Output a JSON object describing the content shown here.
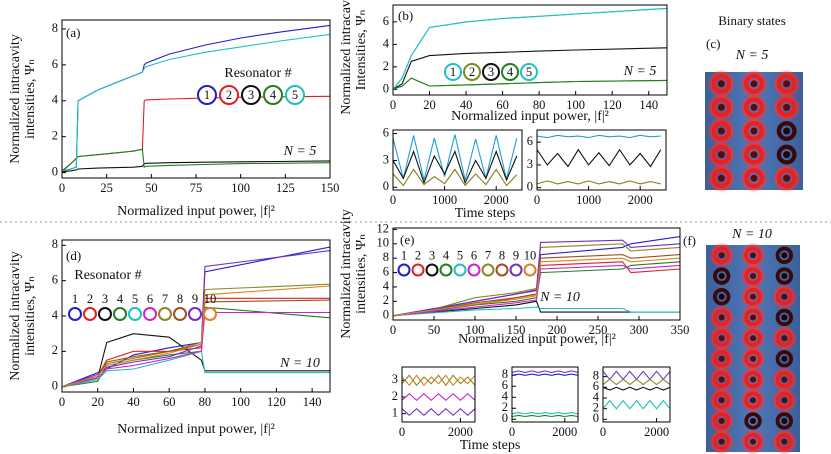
{
  "chart_data": [
    {
      "type": "line",
      "label": "(a)",
      "xlabel": "Normalized input power, |f|²",
      "ylabel": [
        "Normalized intracavity",
        "intensities, Ψₙ"
      ],
      "annotations": [
        "N = 5"
      ],
      "resonator_title": "Resonator #",
      "xlim": [
        0,
        150
      ],
      "ylim": [
        -0.3,
        8.5
      ],
      "xticks": [
        0,
        25,
        50,
        75,
        100,
        125,
        150
      ],
      "yticks": [
        0,
        2,
        4,
        6,
        8
      ],
      "x": [
        0,
        5,
        8,
        9,
        20,
        40,
        45,
        46,
        47,
        60,
        80,
        100,
        120,
        150
      ],
      "series": [
        {
          "name": "1",
          "color": "#1f1fd0",
          "values": [
            0.1,
            0.2,
            0.3,
            4.0,
            4.6,
            5.4,
            5.6,
            6.0,
            6.1,
            6.6,
            7.1,
            7.5,
            7.8,
            8.2
          ]
        },
        {
          "name": "2",
          "color": "#e02020",
          "values": [
            0.1,
            0.5,
            0.8,
            0.9,
            1.0,
            1.2,
            1.3,
            4.0,
            4.05,
            4.1,
            4.15,
            4.2,
            4.22,
            4.25
          ]
        },
        {
          "name": "3",
          "color": "#111111",
          "values": [
            0.05,
            0.1,
            0.15,
            0.2,
            0.25,
            0.3,
            0.35,
            0.5,
            0.52,
            0.55,
            0.58,
            0.6,
            0.62,
            0.65
          ]
        },
        {
          "name": "4",
          "color": "#208020",
          "values": [
            0.05,
            0.5,
            0.8,
            0.9,
            1.0,
            1.2,
            1.3,
            0.3,
            0.35,
            0.4,
            0.45,
            0.5,
            0.52,
            0.55
          ]
        },
        {
          "name": "5",
          "color": "#1fc0c0",
          "values": [
            0.1,
            0.2,
            0.3,
            4.0,
            4.6,
            5.4,
            5.6,
            5.8,
            5.9,
            6.3,
            6.7,
            7.0,
            7.3,
            7.7
          ]
        }
      ]
    },
    {
      "type": "line",
      "label": "(b)",
      "xlabel": "Normalized input power, |f|²",
      "ylabel": [
        "Normalized intracavity",
        "Intensities, Ψₙ"
      ],
      "annotations": [
        "N = 5"
      ],
      "xlim": [
        0,
        150
      ],
      "ylim": [
        -0.5,
        7.5
      ],
      "xticks": [
        0,
        20,
        40,
        60,
        80,
        100,
        120,
        140
      ],
      "yticks": [
        0,
        2,
        4,
        6
      ],
      "x": [
        0,
        5,
        10,
        20,
        40,
        60,
        80,
        100,
        150
      ],
      "series": [
        {
          "name": "1",
          "color": "#1fc0c0",
          "values": [
            0,
            1,
            3,
            5.5,
            6,
            6.3,
            6.5,
            6.7,
            7.2
          ]
        },
        {
          "name": "2",
          "color": "#7a8a20",
          "values": [
            0,
            0.3,
            1,
            0.3,
            0.4,
            0.5,
            0.6,
            0.7,
            0.8
          ]
        },
        {
          "name": "3",
          "color": "#111111",
          "values": [
            0,
            0.5,
            2.5,
            3,
            3.2,
            3.3,
            3.4,
            3.5,
            3.7
          ]
        },
        {
          "name": "4",
          "color": "#208020",
          "values": [
            0,
            0.3,
            1,
            0.3,
            0.4,
            0.5,
            0.6,
            0.7,
            0.8
          ]
        },
        {
          "name": "5",
          "color": "#1fc0c0",
          "values": [
            0,
            1,
            3,
            5.5,
            6,
            6.3,
            6.5,
            6.7,
            7.2
          ]
        }
      ]
    },
    {
      "type": "line",
      "xlabel": "Time steps",
      "xlim": [
        0,
        2500
      ],
      "ylim": [
        -0.3,
        6.4
      ],
      "xticks": [
        0,
        1000,
        2000
      ],
      "yticks": [
        0,
        3,
        6
      ],
      "x": [
        0,
        200,
        400,
        600,
        800,
        1000,
        1200,
        1400,
        1600,
        1800,
        2000,
        2200,
        2400
      ],
      "series": [
        {
          "color": "#1fa0d0",
          "values": [
            5.5,
            1,
            5.8,
            0.8,
            5.5,
            1.2,
            5.9,
            0.8,
            5.4,
            1,
            5.8,
            0.9,
            5.5
          ]
        },
        {
          "color": "#111111",
          "values": [
            3,
            1,
            4,
            0.5,
            3.5,
            1.5,
            4,
            0.5,
            3,
            1,
            4,
            0.8,
            3.5
          ]
        },
        {
          "color": "#8a7a20",
          "values": [
            1.5,
            0.2,
            2,
            0.3,
            1.2,
            0.4,
            2,
            0.2,
            1.5,
            0.3,
            2,
            0.2,
            1.4
          ]
        }
      ]
    },
    {
      "type": "line",
      "xlim": [
        0,
        2500
      ],
      "ylim": [
        -0.3,
        7.6
      ],
      "xticks": [
        0,
        1000,
        2000
      ],
      "yticks": [
        0,
        3,
        6
      ],
      "x": [
        0,
        200,
        400,
        600,
        800,
        1000,
        1200,
        1400,
        1600,
        1800,
        2000,
        2200,
        2400
      ],
      "series": [
        {
          "color": "#1fa0d0",
          "values": [
            6.8,
            6.6,
            6.9,
            6.7,
            6.8,
            6.6,
            6.9,
            6.7,
            6.8,
            6.6,
            6.9,
            6.7,
            6.8
          ]
        },
        {
          "color": "#111111",
          "values": [
            5,
            3,
            4.5,
            2.8,
            5,
            3,
            4.6,
            2.9,
            5,
            3,
            4.5,
            2.8,
            5
          ]
        },
        {
          "color": "#8a7a20",
          "values": [
            0.5,
            0.9,
            0.5,
            0.8,
            0.5,
            0.9,
            0.5,
            0.8,
            0.5,
            0.9,
            0.5,
            0.8,
            0.5
          ]
        }
      ]
    },
    {
      "type": "image",
      "label": "(c)",
      "title": "Binary states",
      "annotations": [
        "N = 5"
      ],
      "states": [
        [
          1,
          1,
          1,
          1,
          1
        ],
        [
          1,
          1,
          1,
          1,
          1
        ],
        [
          1,
          1,
          0,
          0,
          1
        ]
      ]
    },
    {
      "type": "line",
      "label": "(d)",
      "xlabel": "Normalized input power, |f|²",
      "ylabel": [
        "Normalized intracavity",
        "intensities, Ψₙ"
      ],
      "annotations": [
        "N = 10"
      ],
      "resonator_title": "Resonator #",
      "xlim": [
        0,
        150
      ],
      "ylim": [
        -0.3,
        8.3
      ],
      "xticks": [
        0,
        20,
        40,
        60,
        80,
        100,
        120,
        140
      ],
      "yticks": [
        0,
        2,
        4,
        6,
        8
      ],
      "x": [
        0,
        20,
        25,
        40,
        60,
        78,
        80,
        150
      ],
      "series": [
        {
          "name": "1",
          "color": "#1f1fd0",
          "values": [
            0,
            0.8,
            1.0,
            1.8,
            2.2,
            2.5,
            6.5,
            7.9
          ]
        },
        {
          "name": "2",
          "color": "#e02020",
          "values": [
            0,
            0.6,
            1.5,
            2.0,
            2.0,
            2.2,
            5.0,
            5.0
          ]
        },
        {
          "name": "3",
          "color": "#111111",
          "values": [
            0,
            0.5,
            2.5,
            3.0,
            2.8,
            1.5,
            0.9,
            0.9
          ]
        },
        {
          "name": "4",
          "color": "#208020",
          "values": [
            0,
            0.3,
            1.2,
            1.5,
            1.8,
            2.0,
            4.5,
            3.9
          ]
        },
        {
          "name": "5",
          "color": "#1fc0c0",
          "values": [
            0,
            0.4,
            0.9,
            1.0,
            1.5,
            2.0,
            0.8,
            0.8
          ]
        },
        {
          "name": "6",
          "color": "#d020d0",
          "values": [
            0,
            0.5,
            1.0,
            1.2,
            1.6,
            2.0,
            4.2,
            4.2
          ]
        },
        {
          "name": "7",
          "color": "#8a8a20",
          "values": [
            0,
            0.6,
            1.3,
            1.6,
            2.0,
            2.5,
            5.5,
            5.8
          ]
        },
        {
          "name": "8",
          "color": "#a05020",
          "values": [
            0,
            0.6,
            1.4,
            1.7,
            2.0,
            2.4,
            4.8,
            4.9
          ]
        },
        {
          "name": "9",
          "color": "#7030c0",
          "values": [
            0,
            0.7,
            1.1,
            1.4,
            1.7,
            2.3,
            6.8,
            7.7
          ]
        },
        {
          "name": "10",
          "color": "#e08020",
          "values": [
            0,
            0.6,
            1.2,
            1.5,
            1.9,
            2.4,
            5.2,
            5.7
          ]
        }
      ]
    },
    {
      "type": "line",
      "label": "(e)",
      "xlabel": "Normalized input power, |f|²",
      "ylabel": [
        "Normalized intracavity",
        "intensities, Ψₙ"
      ],
      "annotations": [
        "N = 10"
      ],
      "xlim": [
        0,
        350
      ],
      "ylim": [
        -0.6,
        12.2
      ],
      "xticks": [
        0,
        50,
        100,
        150,
        200,
        250,
        300,
        350
      ],
      "yticks": [
        0,
        2,
        4,
        6,
        8,
        10,
        12
      ],
      "x": [
        0,
        50,
        100,
        150,
        175,
        180,
        280,
        290,
        350
      ],
      "series": [
        {
          "name": "1",
          "color": "#1f1fd0",
          "values": [
            0,
            1.0,
            2.0,
            3.0,
            3.5,
            8.5,
            9.5,
            10,
            11
          ]
        },
        {
          "name": "2",
          "color": "#e02020",
          "values": [
            0,
            0.8,
            1.5,
            2.5,
            3,
            7,
            7.5,
            6,
            6.5
          ]
        },
        {
          "name": "3",
          "color": "#111111",
          "values": [
            0,
            0.5,
            1,
            1.5,
            2,
            0.5,
            0.5,
            0.5,
            0.5
          ]
        },
        {
          "name": "4",
          "color": "#208020",
          "values": [
            0,
            0.7,
            1.5,
            2,
            2.5,
            6,
            6.5,
            7,
            7.5
          ]
        },
        {
          "name": "5",
          "color": "#1fc0c0",
          "values": [
            0,
            0.4,
            0.8,
            1,
            1.2,
            1,
            1,
            0.5,
            0.5
          ]
        },
        {
          "name": "6",
          "color": "#d020d0",
          "values": [
            0,
            0.6,
            1.2,
            1.8,
            2.2,
            6.5,
            7,
            6.5,
            7
          ]
        },
        {
          "name": "7",
          "color": "#8a8a20",
          "values": [
            0,
            0.9,
            2.5,
            3.2,
            3.8,
            9.5,
            10,
            9,
            9.5
          ]
        },
        {
          "name": "8",
          "color": "#a05020",
          "values": [
            0,
            0.8,
            1.8,
            2.5,
            3,
            8,
            8.5,
            8,
            8.5
          ]
        },
        {
          "name": "9",
          "color": "#7030c0",
          "values": [
            0,
            0.9,
            2.0,
            3.0,
            3.6,
            10.2,
            10.5,
            9.5,
            10
          ]
        },
        {
          "name": "10",
          "color": "#e08020",
          "values": [
            0,
            0.8,
            1.6,
            2.3,
            2.8,
            7.5,
            8,
            7.5,
            8
          ]
        }
      ]
    },
    {
      "type": "line",
      "xlabel": "Time steps",
      "xlim": [
        0,
        2500
      ],
      "ylim": [
        0.5,
        3.8
      ],
      "xticks": [
        0,
        2000
      ],
      "yticks": [
        1,
        2,
        3
      ],
      "x": [
        0,
        250,
        500,
        750,
        1000,
        1250,
        1500,
        1750,
        2000,
        2250,
        2500
      ],
      "series": [
        {
          "color": "#e08020",
          "values": [
            3.2,
            2.7,
            3.3,
            2.7,
            3.2,
            2.8,
            3.3,
            2.7,
            3.2,
            2.8,
            3.3
          ]
        },
        {
          "color": "#8a8a20",
          "values": [
            2.8,
            3.3,
            2.7,
            3.2,
            2.8,
            3.3,
            2.7,
            3.3,
            2.8,
            3.2,
            2.7
          ]
        },
        {
          "color": "#d020d0",
          "values": [
            1.8,
            2.2,
            1.8,
            2.2,
            1.8,
            2.2,
            1.8,
            2.2,
            1.8,
            2.2,
            1.8
          ]
        },
        {
          "color": "#7030c0",
          "values": [
            1.3,
            0.9,
            1.3,
            0.9,
            1.3,
            0.9,
            1.3,
            0.9,
            1.3,
            0.9,
            1.3
          ]
        }
      ]
    },
    {
      "type": "line",
      "xlim": [
        0,
        2500
      ],
      "ylim": [
        -0.5,
        9.5
      ],
      "xticks": [
        0,
        2000
      ],
      "yticks": [
        0,
        2,
        4,
        6,
        8
      ],
      "x": [
        0,
        250,
        500,
        750,
        1000,
        1250,
        1500,
        1750,
        2000,
        2250,
        2500
      ],
      "series": [
        {
          "color": "#7030c0",
          "values": [
            8.5,
            8.8,
            8.5,
            8.8,
            8.5,
            8.8,
            8.5,
            8.8,
            8.5,
            8.8,
            8.5
          ]
        },
        {
          "color": "#1f1fd0",
          "values": [
            8,
            8.2,
            8,
            8.2,
            8,
            8.2,
            8,
            8.2,
            8,
            8.2,
            8
          ]
        },
        {
          "color": "#1fc0c0",
          "values": [
            1,
            1.2,
            1,
            1.2,
            1,
            1.2,
            1,
            1.2,
            1,
            1.2,
            1
          ]
        },
        {
          "color": "#208020",
          "values": [
            0.5,
            0.7,
            0.5,
            0.7,
            0.5,
            0.7,
            0.5,
            0.7,
            0.5,
            0.7,
            0.5
          ]
        }
      ]
    },
    {
      "type": "line",
      "xlim": [
        0,
        2500
      ],
      "ylim": [
        -0.5,
        9.8
      ],
      "xticks": [
        0,
        2000
      ],
      "yticks": [
        0,
        2,
        4,
        6,
        8
      ],
      "x": [
        0,
        250,
        500,
        750,
        1000,
        1250,
        1500,
        1750,
        2000,
        2250,
        2500
      ],
      "series": [
        {
          "color": "#7030c0",
          "values": [
            9,
            7.5,
            9,
            7.5,
            9,
            7.5,
            9,
            7.5,
            9,
            7.5,
            9
          ]
        },
        {
          "color": "#8a8a20",
          "values": [
            6.5,
            7.5,
            6.5,
            7.5,
            6.5,
            7.5,
            6.5,
            7.5,
            6.5,
            7.5,
            6.5
          ]
        },
        {
          "color": "#111111",
          "values": [
            6,
            5.5,
            6,
            5.5,
            6,
            5.5,
            6,
            5.5,
            6,
            5.5,
            6
          ]
        },
        {
          "color": "#1fc0c0",
          "values": [
            2,
            3.5,
            2,
            3.5,
            2,
            3.5,
            2,
            3.5,
            2,
            3.5,
            2
          ]
        }
      ]
    },
    {
      "type": "image",
      "label": "(f)",
      "annotations": [
        "N = 10"
      ],
      "states": [
        [
          1,
          0,
          0,
          1,
          1,
          1,
          1,
          1,
          1,
          1
        ],
        [
          1,
          1,
          1,
          1,
          1,
          1,
          1,
          1,
          0,
          1
        ],
        [
          0,
          0,
          1,
          0,
          1,
          0,
          1,
          1,
          0,
          1
        ]
      ]
    }
  ]
}
